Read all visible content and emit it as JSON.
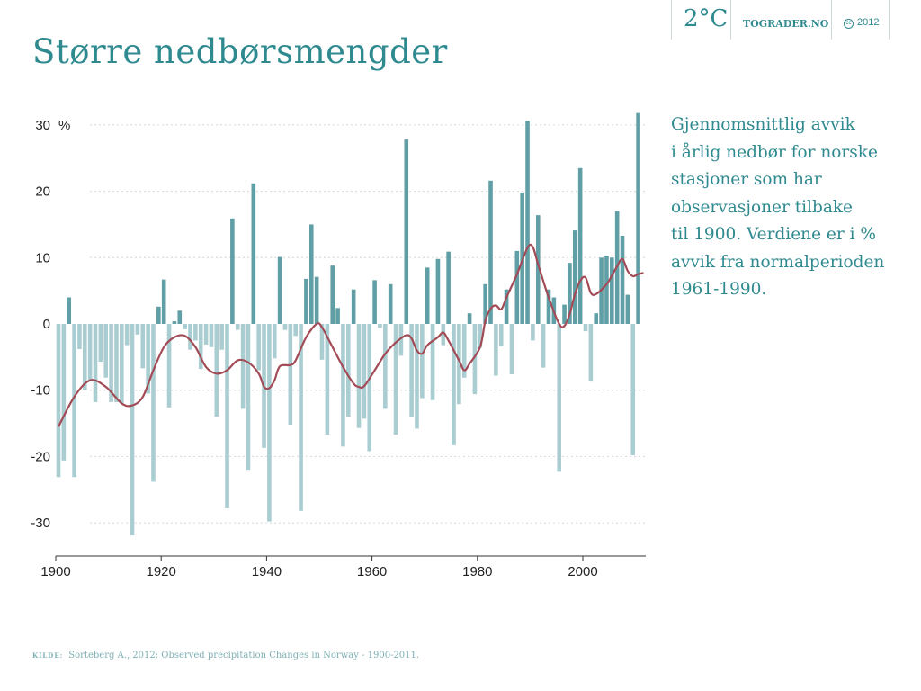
{
  "header": {
    "logo": "2°C",
    "site": "TOGRADER.NO",
    "license_icon": "cc-icon",
    "year": "2012"
  },
  "title": "Større nedbørsmengder",
  "description": [
    "Gjennomsnittlig avvik",
    "i årlig nedbør for norske",
    "stasjoner som har",
    "observasjoner tilbake",
    "til 1900. Verdiene er i %",
    "avvik fra normalperioden",
    "1961-1990."
  ],
  "source": {
    "label": "KILDE:",
    "text": "Sorteberg A., 2012: Observed precipitation Changes in Norway - 1900-2011."
  },
  "colors": {
    "positive": "#609fa5",
    "negative": "#aacdd1",
    "trend": "#a24b57",
    "title": "#2f8a90"
  },
  "chart_data": {
    "type": "bar",
    "title": "",
    "xlabel": "",
    "ylabel": "%",
    "xlim": [
      1900,
      2011
    ],
    "ylim": [
      -35,
      33
    ],
    "x_ticks": [
      1900,
      1920,
      1940,
      1960,
      1980,
      2000
    ],
    "y_ticks": [
      30,
      20,
      10,
      0,
      -10,
      -20,
      -30
    ],
    "grid": true,
    "start_year": 1900,
    "values": [
      -23.1,
      -20.6,
      4.0,
      -23.1,
      -3.8,
      -10,
      -8.5,
      -11.8,
      -5.7,
      -8.1,
      -11.8,
      -11.8,
      -12,
      -3.2,
      -31.9,
      -1.6,
      -6.7,
      -10.5,
      -23.8,
      2.6,
      6.7,
      -12.6,
      0.4,
      2.0,
      -0.8,
      -3.9,
      -2.5,
      -6.8,
      -3.1,
      -3.5,
      -14,
      -3.9,
      -27.8,
      15.9,
      -0.9,
      -12.8,
      -22,
      21.2,
      -7,
      -18.7,
      -29.8,
      -5.2,
      10.1,
      -0.9,
      -15.2,
      -1.8,
      -28.2,
      6.8,
      15.0,
      7.1,
      -5.4,
      -16.7,
      8.8,
      2.4,
      -18.5,
      -14,
      5.2,
      -15.7,
      -14.3,
      -19.2,
      6.6,
      -0.6,
      -12.8,
      6.0,
      -16.7,
      -4.8,
      27.8,
      -14.1,
      -15.8,
      -11.2,
      8.5,
      -11.5,
      9.8,
      -3.2,
      10.9,
      -18.3,
      -12.1,
      -8.1,
      1.6,
      -10.6,
      -3.6,
      6.0,
      21.6,
      -7.8,
      -3.4,
      5.2,
      -7.6,
      11.0,
      19.8,
      30.6,
      -2.5,
      16.4,
      -6.6,
      5.2,
      4.0,
      -22.3,
      2.9,
      9.2,
      14.1,
      23.5,
      -1.1,
      -8.7,
      1.6,
      10.0,
      10.3,
      10.0,
      17.0,
      13.3,
      4.4,
      -19.8,
      31.8
    ],
    "trend": {
      "x": [
        1900,
        1903,
        1906,
        1909,
        1912,
        1914,
        1916,
        1918,
        1920,
        1922,
        1924,
        1926,
        1928,
        1930,
        1932,
        1934,
        1936,
        1938,
        1939,
        1940,
        1941,
        1942,
        1944,
        1945,
        1947,
        1949,
        1950,
        1952,
        1954,
        1956,
        1957,
        1958,
        1960,
        1962,
        1964,
        1966,
        1967,
        1968,
        1969,
        1970,
        1972,
        1973,
        1974,
        1976,
        1977,
        1978,
        1980,
        1981,
        1982,
        1983,
        1984,
        1985,
        1987,
        1989,
        1990,
        1991,
        1993,
        1995,
        1996,
        1997,
        1998,
        1999,
        2000,
        2001,
        2002,
        2004,
        2005,
        2006,
        2007,
        2008,
        2009,
        2010,
        2011
      ],
      "y": [
        -15.5,
        -11,
        -8.5,
        -9.5,
        -12,
        -12.3,
        -11,
        -7,
        -3.5,
        -2,
        -1.8,
        -3.5,
        -6.5,
        -7.5,
        -7,
        -5.5,
        -5.8,
        -7.5,
        -9.5,
        -9.7,
        -8.5,
        -6.4,
        -6.2,
        -5.5,
        -2,
        0,
        -0.5,
        -3.5,
        -6.5,
        -9,
        -9.5,
        -9.4,
        -7,
        -4.5,
        -2.8,
        -1.7,
        -2.2,
        -4,
        -4.5,
        -3.2,
        -2,
        -1.3,
        -2.5,
        -5.5,
        -7,
        -6,
        -3.5,
        0.5,
        2.3,
        2.8,
        2.2,
        4,
        7.5,
        11.5,
        11.6,
        9,
        4,
        0,
        -0.3,
        1.5,
        4.5,
        6.5,
        7,
        4.7,
        4.5,
        6,
        7.3,
        8.7,
        9.8,
        8,
        7.2,
        7.5,
        7.7
      ]
    }
  }
}
